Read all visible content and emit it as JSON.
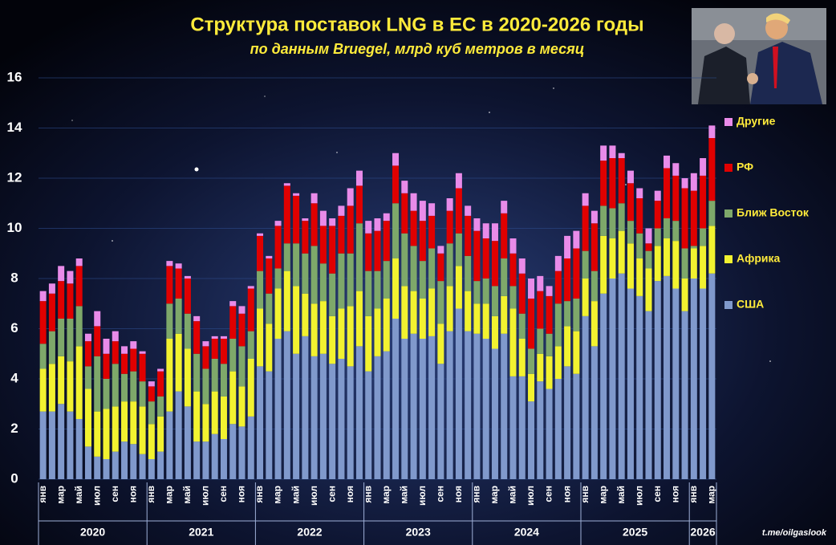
{
  "chart_data": {
    "type": "stacked_bar",
    "title": "Структура  поставок  LNG в ЕС в 2020-2026 годы",
    "subtitle": "по данным  Bruegel,  млрд куб метров в месяц",
    "source": "t.me/oilgaslook",
    "categories": [
      "янв",
      null,
      "мар",
      null,
      "май",
      null,
      "июл",
      null,
      "сен",
      null,
      "ноя",
      null,
      "янв",
      null,
      "мар",
      null,
      "май",
      null,
      "июл",
      null,
      "сен",
      null,
      "ноя",
      null,
      "янв",
      null,
      "мар",
      null,
      "май",
      null,
      "июл",
      null,
      "сен",
      null,
      "ноя",
      null,
      "янв",
      null,
      "мар",
      null,
      "май",
      null,
      "июл",
      null,
      "сен",
      null,
      "ноя",
      null,
      "янв",
      null,
      "мар",
      null,
      "май",
      null,
      "июл",
      null,
      "сен",
      null,
      "ноя",
      null,
      "янв",
      null,
      "мар",
      null,
      "май",
      null,
      "июл",
      null,
      "сен",
      null,
      "ноя",
      null,
      "янв",
      null,
      "мар"
    ],
    "year_groups": [
      "2020",
      "2021",
      "2022",
      "2023",
      "2024",
      "2025",
      "2026"
    ],
    "series": [
      {
        "name": "США",
        "color": "#8099cc",
        "values": [
          2.7,
          2.7,
          3.0,
          2.7,
          2.4,
          1.3,
          0.9,
          0.8,
          1.1,
          1.5,
          1.4,
          1.0,
          0.8,
          1.1,
          2.7,
          3.5,
          2.9,
          1.5,
          1.5,
          1.8,
          1.6,
          2.2,
          2.1,
          2.5,
          4.5,
          4.3,
          5.6,
          5.9,
          5.0,
          5.7,
          4.9,
          5.0,
          4.6,
          4.8,
          4.5,
          5.3,
          4.3,
          4.9,
          5.1,
          6.4,
          5.6,
          5.8,
          5.6,
          5.7,
          4.6,
          5.9,
          6.8,
          5.9,
          5.8,
          5.6,
          5.2,
          5.8,
          4.1,
          4.1,
          3.1,
          3.9,
          3.6,
          4.0,
          4.5,
          4.2,
          6.5,
          5.3,
          7.4,
          8.0,
          8.2,
          7.6,
          7.3,
          6.7,
          7.9,
          8.1,
          7.6,
          6.7,
          8.0,
          7.6,
          8.2
        ]
      },
      {
        "name": "Африка",
        "color": "#f2f230",
        "values": [
          1.7,
          1.9,
          1.9,
          2.0,
          2.9,
          2.3,
          1.8,
          2.0,
          1.8,
          1.6,
          1.7,
          1.9,
          1.4,
          1.4,
          2.9,
          2.3,
          2.3,
          2.0,
          1.5,
          1.7,
          1.7,
          2.1,
          1.6,
          2.3,
          2.3,
          1.9,
          2.0,
          2.4,
          2.7,
          1.7,
          2.1,
          2.1,
          1.9,
          2.0,
          2.4,
          2.2,
          2.2,
          1.9,
          2.1,
          2.4,
          2.1,
          1.7,
          1.6,
          1.9,
          1.6,
          1.8,
          1.7,
          1.6,
          1.2,
          1.4,
          1.3,
          1.5,
          2.7,
          1.5,
          1.1,
          1.1,
          1.3,
          1.3,
          1.6,
          1.7,
          1.5,
          1.8,
          2.3,
          1.6,
          1.7,
          1.8,
          1.5,
          1.7,
          1.4,
          1.5,
          1.9,
          1.3,
          1.2,
          1.7,
          1.9
        ]
      },
      {
        "name": "Ближ Восток",
        "color": "#7ea86a",
        "values": [
          1.0,
          1.3,
          1.5,
          1.7,
          1.6,
          0.9,
          2.2,
          1.2,
          1.7,
          1.1,
          1.2,
          1.0,
          0.9,
          0.8,
          1.4,
          1.4,
          1.4,
          1.5,
          1.4,
          1.3,
          1.3,
          1.3,
          1.6,
          1.1,
          1.5,
          1.2,
          0.8,
          1.1,
          1.7,
          1.6,
          2.3,
          1.5,
          1.7,
          2.2,
          2.1,
          2.7,
          1.8,
          1.5,
          1.5,
          2.2,
          2.1,
          1.8,
          1.5,
          1.6,
          1.7,
          1.7,
          1.3,
          1.4,
          0.9,
          1.0,
          1.2,
          1.5,
          0.9,
          1.0,
          1.0,
          1.0,
          0.9,
          1.7,
          1.0,
          1.3,
          1.1,
          1.2,
          1.2,
          1.2,
          1.1,
          0.9,
          1.0,
          0.7,
          0.7,
          0.8,
          0.8,
          1.2,
          0.1,
          0.7,
          1.0
        ]
      },
      {
        "name": "РФ",
        "color": "#e00000",
        "values": [
          1.7,
          1.5,
          1.5,
          1.4,
          1.6,
          1.0,
          1.2,
          1.0,
          0.9,
          0.8,
          0.9,
          1.1,
          0.6,
          1.0,
          1.5,
          1.2,
          1.4,
          1.3,
          0.9,
          0.8,
          1.0,
          1.3,
          1.3,
          1.7,
          1.4,
          1.4,
          1.7,
          2.3,
          1.9,
          1.3,
          1.7,
          1.5,
          1.9,
          1.5,
          1.9,
          1.5,
          1.5,
          1.6,
          1.6,
          1.5,
          1.6,
          1.4,
          1.6,
          1.3,
          1.1,
          1.3,
          1.8,
          1.6,
          2.0,
          1.6,
          1.8,
          1.8,
          1.3,
          1.6,
          2.0,
          1.5,
          1.5,
          1.3,
          1.7,
          2.0,
          1.8,
          1.9,
          1.8,
          2.0,
          1.8,
          1.5,
          1.4,
          0.3,
          1.1,
          2.0,
          1.8,
          2.4,
          2.2,
          2.1,
          2.5
        ]
      },
      {
        "name": "Другие",
        "color": "#e98be9",
        "values": [
          0.4,
          0.4,
          0.6,
          0.5,
          0.3,
          0.3,
          0.6,
          0.6,
          0.4,
          0.3,
          0.3,
          0.1,
          0.2,
          0.1,
          0.2,
          0.2,
          0.1,
          0.2,
          0.2,
          0.1,
          0.1,
          0.2,
          0.3,
          0.1,
          0.1,
          0.1,
          0.2,
          0.1,
          0.1,
          0.1,
          0.4,
          0.6,
          0.3,
          0.4,
          0.7,
          0.6,
          0.5,
          0.5,
          0.3,
          0.5,
          0.5,
          0.7,
          0.8,
          0.5,
          0.3,
          0.5,
          0.6,
          0.4,
          0.5,
          0.6,
          0.7,
          0.5,
          0.6,
          0.6,
          0.8,
          0.6,
          0.4,
          0.6,
          0.9,
          0.7,
          0.5,
          0.5,
          0.6,
          0.5,
          0.2,
          0.5,
          0.4,
          0.6,
          0.4,
          0.5,
          0.5,
          0.4,
          0.7,
          0.7,
          0.5
        ]
      }
    ],
    "ylim": [
      0,
      16
    ],
    "yticks": [
      0,
      2,
      4,
      6,
      8,
      10,
      12,
      14,
      16
    ],
    "grid": true
  }
}
